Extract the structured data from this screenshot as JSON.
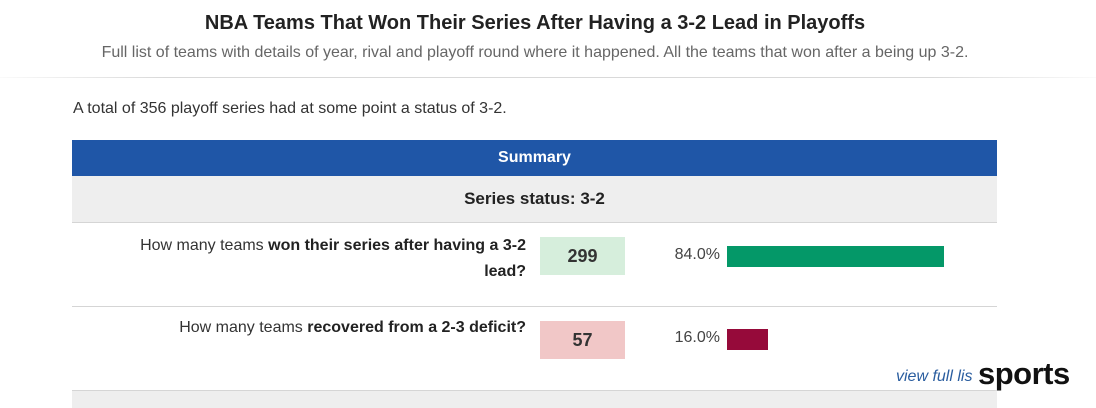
{
  "header": {
    "title": "NBA Teams That Won Their Series After Having a 3-2 Lead in Playoffs",
    "subtitle": "Full list of teams with details of year, rival and playoff round where it happened. All the teams that won after a being up 3-2."
  },
  "intro": "A total of 356 playoff series had at some point a status of 3-2.",
  "summary": {
    "header": "Summary",
    "status_label": "Series status: 3-2",
    "rows": [
      {
        "question_pre": "How many teams ",
        "question_bold": "won their series after having a 3-2 lead?",
        "count": "299",
        "percent_label": "84.0%",
        "fraction": 0.84,
        "color": "#049868"
      },
      {
        "question_pre": "How many teams ",
        "question_bold": "recovered from a 2-3 deficit?",
        "count": "57",
        "percent_label": "16.0%",
        "fraction": 0.16,
        "color": "#960a3a"
      }
    ]
  },
  "view_link": "view full lis",
  "watermark": "sports",
  "colors": {
    "header_blue": "#1f56a7",
    "win_green": "#049868",
    "loss_red": "#960a3a",
    "win_count_bg": "#d6eedc",
    "loss_count_bg": "#f1c7c7"
  }
}
